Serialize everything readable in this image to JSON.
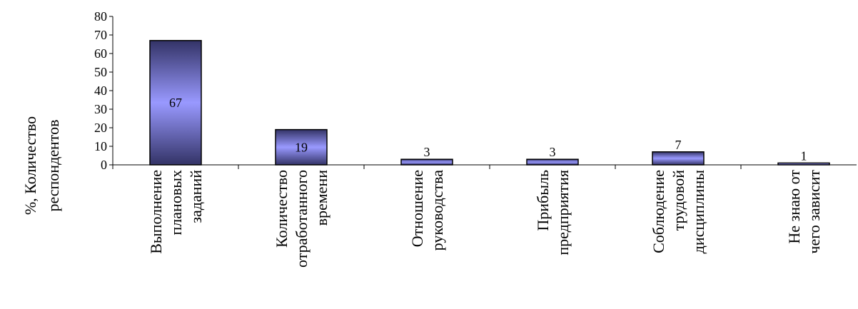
{
  "chart_data": {
    "type": "bar",
    "title": "",
    "xlabel": "",
    "ylabel": [
      "%, Количество",
      "респондентов"
    ],
    "ylim": [
      0,
      80
    ],
    "yticks": [
      0,
      10,
      20,
      30,
      40,
      50,
      60,
      70,
      80
    ],
    "categories": [
      [
        "Выполнение",
        "плановых",
        "заданий"
      ],
      [
        "Количество",
        "отработанного",
        "времени"
      ],
      [
        "Отношение",
        "руководства"
      ],
      [
        "Прибыль",
        "предприятия"
      ],
      [
        "Соблюдение",
        "трудовой",
        "дисциплины"
      ],
      [
        "Не знаю от",
        "чего зависит"
      ]
    ],
    "values": [
      67,
      19,
      3,
      3,
      7,
      1
    ],
    "grid": false,
    "legend": "none",
    "colors": {
      "bar_light": "#9999ff",
      "bar_dark": "#333366",
      "bar_stroke": "#000000"
    }
  }
}
